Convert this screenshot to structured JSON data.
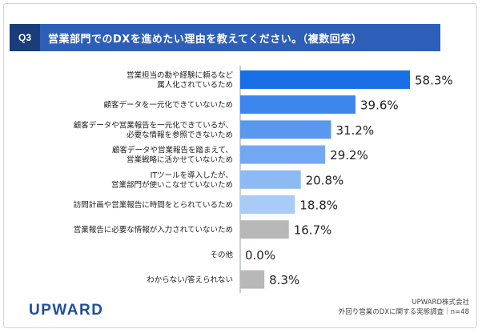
{
  "header": {
    "badge": "Q3",
    "title": "営業部門でのDXを進めたい理由を教えてください。（複数回答）"
  },
  "footer": {
    "company": "UPWARD株式会社",
    "survey": "外回り営業のDXに関する実態調査｜n=48",
    "logo": "UPWARD"
  },
  "chart_data": {
    "type": "bar",
    "orientation": "horizontal",
    "title": "",
    "xlabel": "",
    "ylabel": "",
    "xlim": [
      0,
      60
    ],
    "grid": false,
    "categories": [
      [
        "営業担当の勘や経験に頼るなど",
        "属人化されているため"
      ],
      [
        "顧客データを一元化できていないため"
      ],
      [
        "顧客データや営業報告を一元化できているが、",
        "必要な情報を参照できないため"
      ],
      [
        "顧客データや営業報告を踏まえて、",
        "営業戦略に活かせていないため"
      ],
      [
        "ITツールを導入したが、",
        "営業部門が使いこなせていないため"
      ],
      [
        "訪問計画や営業報告に時間をとられているため"
      ],
      [
        "営業報告に必要な情報が入力されていないため"
      ],
      [
        "その他"
      ],
      [
        "わからない/答えられない"
      ]
    ],
    "values": [
      58.3,
      39.6,
      31.2,
      29.2,
      20.8,
      18.8,
      16.7,
      0.0,
      8.3
    ],
    "value_labels": [
      "58.3%",
      "39.6%",
      "31.2%",
      "29.2%",
      "20.8%",
      "18.8%",
      "16.7%",
      "0.0%",
      "8.3%"
    ],
    "colors": [
      "#1a6fe6",
      "#3d86ee",
      "#5a98f0",
      "#72a8f2",
      "#8db9f5",
      "#a8cbf8",
      "#b8b8b8",
      "#b8b8b8",
      "#b8b8b8"
    ]
  }
}
